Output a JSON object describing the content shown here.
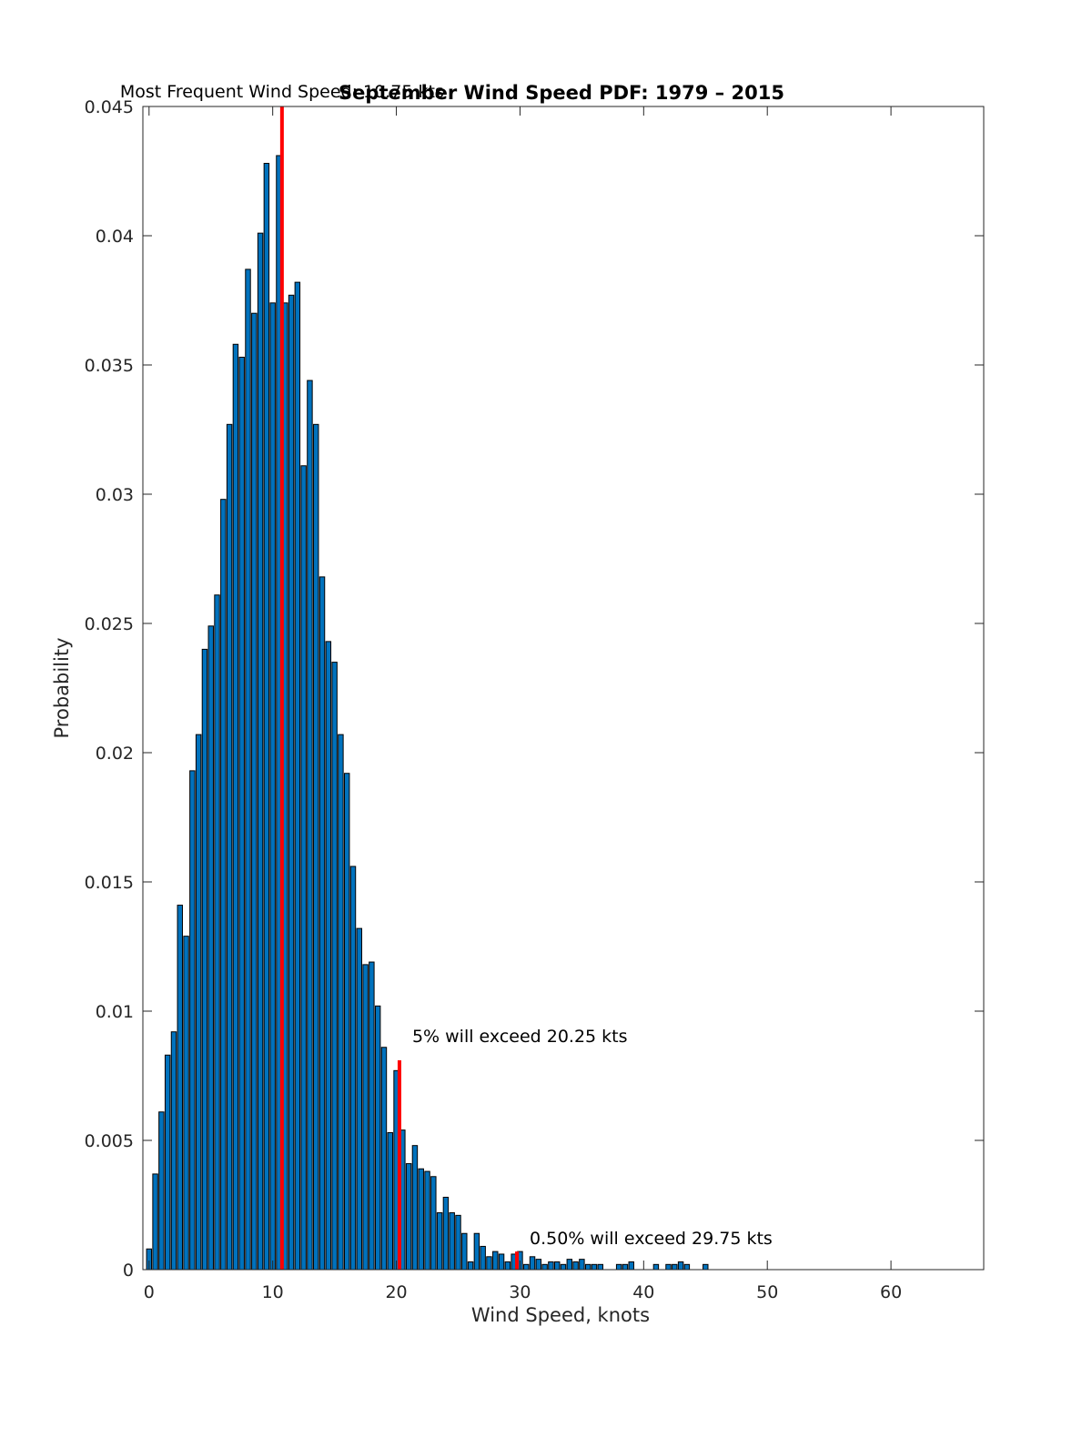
{
  "chart_data": {
    "type": "bar",
    "title": "September Wind Speed PDF: 1979 – 2015",
    "xlabel": "Wind Speed, knots",
    "ylabel": "Probability",
    "xlim": [
      -0.5,
      67.5
    ],
    "ylim": [
      0,
      0.045
    ],
    "xticks": [
      0,
      10,
      20,
      30,
      40,
      50,
      60
    ],
    "yticks": [
      0,
      0.005,
      0.01,
      0.015,
      0.02,
      0.025,
      0.03,
      0.035,
      0.04,
      0.045
    ],
    "ytick_labels": [
      "0",
      "0.005",
      "0.01",
      "0.015",
      "0.02",
      "0.025",
      "0.03",
      "0.035",
      "0.04",
      "0.045"
    ],
    "bin_width": 0.5,
    "grid": false,
    "bar_color": "#0072BD",
    "marker_color": "#FF0000",
    "series": [
      {
        "x": [
          0,
          0.5,
          1,
          1.5,
          2,
          2.5,
          3,
          3.5,
          4,
          4.5,
          5,
          5.5,
          6,
          6.5,
          7,
          7.5,
          8,
          8.5,
          9,
          9.5,
          10,
          10.5,
          11,
          11.5,
          12,
          12.5,
          13,
          13.5,
          14,
          14.5,
          15,
          15.5,
          16,
          16.5,
          17,
          17.5,
          18,
          18.5,
          19,
          19.5,
          20,
          20.5,
          21,
          21.5,
          22,
          22.5,
          23,
          23.5,
          24,
          24.5,
          25,
          25.5,
          26,
          26.5,
          27,
          27.5,
          28,
          28.5,
          29,
          29.5,
          30,
          30.5,
          31,
          31.5,
          32,
          32.5,
          33,
          33.5,
          34,
          34.5,
          35,
          35.5,
          36,
          36.5,
          37,
          37.5,
          38,
          38.5,
          39,
          39.5,
          40,
          40.5,
          41,
          41.5,
          42,
          42.5,
          43,
          43.5,
          44,
          44.5,
          45,
          45.5,
          46,
          46.5,
          47,
          47.5,
          48,
          48.5,
          49
        ],
        "values": [
          0.0008,
          0.0037,
          0.0061,
          0.0083,
          0.0092,
          0.0141,
          0.0129,
          0.0193,
          0.0207,
          0.024,
          0.0249,
          0.0261,
          0.0298,
          0.0327,
          0.0358,
          0.0353,
          0.0387,
          0.037,
          0.0401,
          0.0428,
          0.0374,
          0.0431,
          0.0374,
          0.0377,
          0.0382,
          0.0311,
          0.0344,
          0.0327,
          0.0268,
          0.0243,
          0.0235,
          0.0207,
          0.0192,
          0.0156,
          0.0132,
          0.0118,
          0.0119,
          0.0102,
          0.0086,
          0.0053,
          0.0077,
          0.0054,
          0.0041,
          0.0048,
          0.0039,
          0.0038,
          0.0036,
          0.0022,
          0.0028,
          0.0022,
          0.0021,
          0.0014,
          0.0003,
          0.0014,
          0.0009,
          0.0005,
          0.0007,
          0.0006,
          0.0003,
          0.0006,
          0.0007,
          0.0002,
          0.0005,
          0.0004,
          0.0002,
          0.0003,
          0.0003,
          0.0002,
          0.0004,
          0.0003,
          0.0004,
          0.0002,
          0.0002,
          0.0002,
          0.0,
          0.0,
          0.0002,
          0.0002,
          0.0003,
          0.0,
          0.0,
          0.0,
          0.0002,
          0.0,
          0.0002,
          0.0002,
          0.0003,
          0.0002,
          0.0,
          0.0,
          0.0002,
          0.0,
          0.0,
          0.0,
          0.0,
          0.0,
          0.0,
          0.0,
          0.0
        ]
      }
    ],
    "markers": [
      {
        "x": 10.75,
        "y_top": 0.045,
        "label": "Most Frequent Wind Speed: 10.75 kts"
      },
      {
        "x": 20.25,
        "y_top": 0.0081,
        "label": "5% will exceed 20.25 kts"
      },
      {
        "x": 29.75,
        "y_top": 0.0007,
        "label": "0.50% will exceed 29.75 kts"
      }
    ]
  }
}
